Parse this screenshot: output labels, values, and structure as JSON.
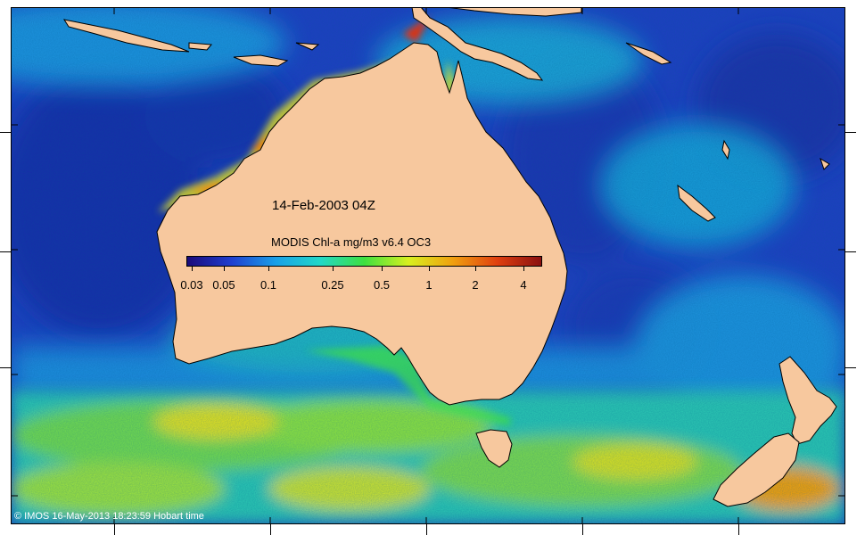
{
  "map": {
    "date_label": "14-Feb-2003 04Z",
    "product_label": "MODIS Chl-a mg/m3 v6.4 OC3",
    "credit": "© IMOS 16-May-2013 18:23:59 Hobart time",
    "colorbar": {
      "labels": [
        "0.03",
        "0.05",
        "0.1",
        "0.25",
        "0.5",
        "1",
        "2",
        "4"
      ],
      "colors": [
        "#1a0a7a",
        "#1f3fd0",
        "#1aa0e8",
        "#22d8c8",
        "#3ee040",
        "#d8f020",
        "#f0a010",
        "#e04010",
        "#8a1010"
      ]
    },
    "colors": {
      "land": "#f7c89e",
      "ocean_low": "#1e3fc0",
      "ocean_mid": "#1da0e0",
      "ocean_high": "#4fd060",
      "bloom": "#e8e020"
    }
  }
}
